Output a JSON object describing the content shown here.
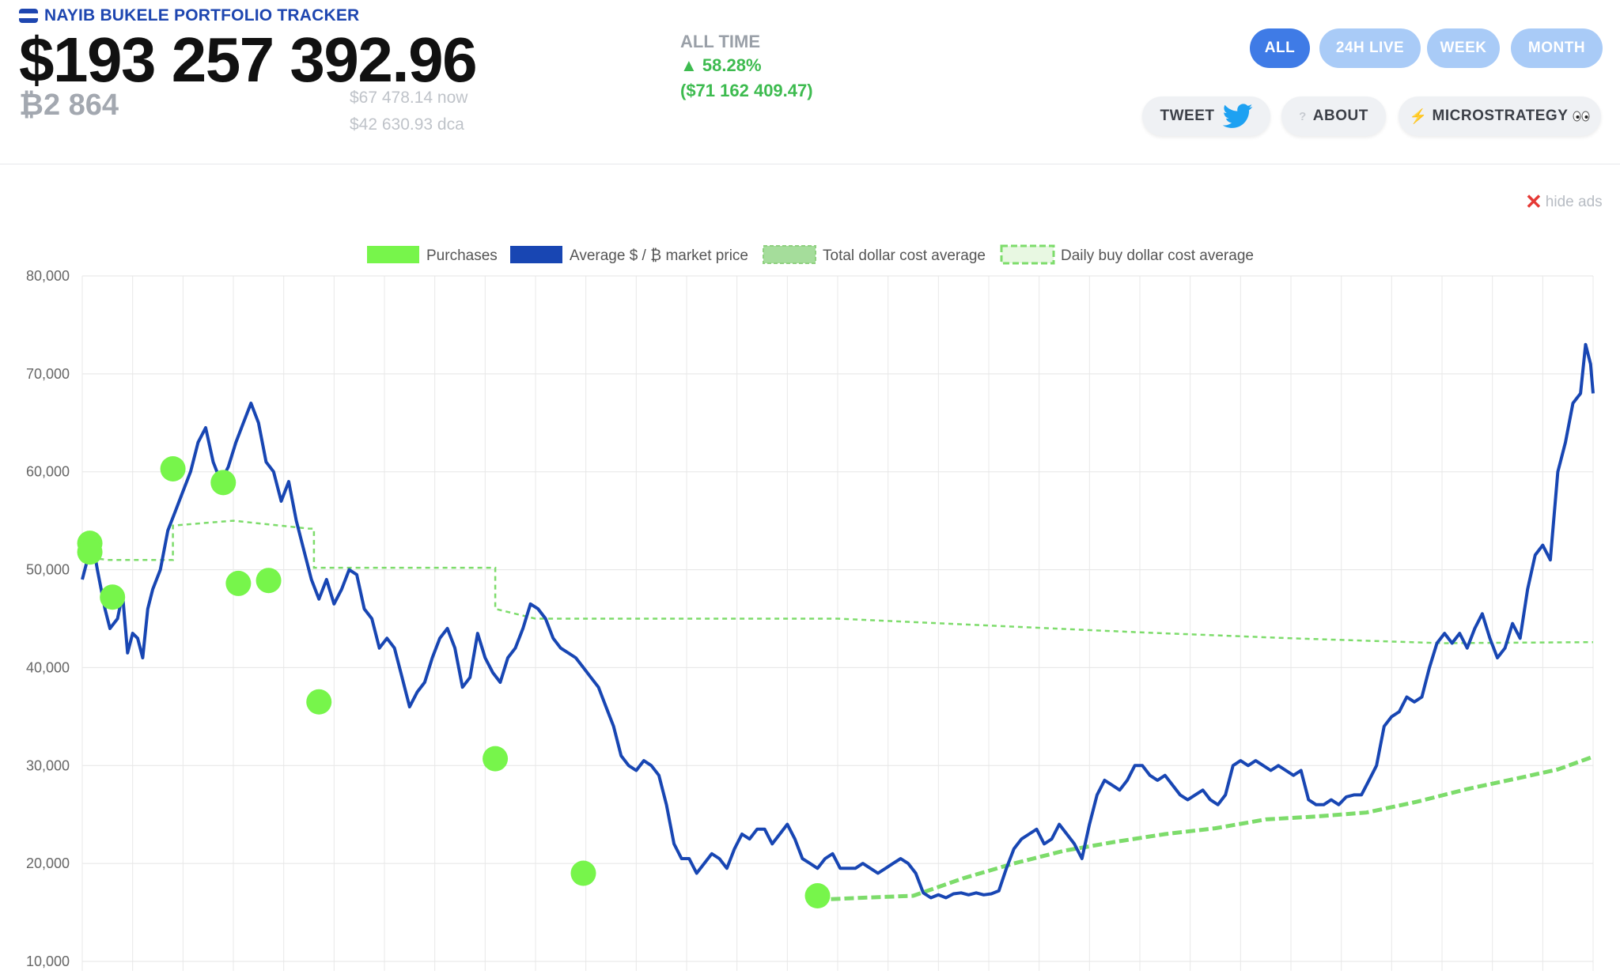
{
  "header": {
    "brand": "NAYIB BUKELE PORTFOLIO TRACKER",
    "flag_icon": "el-salvador-flag-icon",
    "total_value": "$193 257 392.96",
    "btc_holdings": "₿2 864",
    "price_now": "$67 478.14 now",
    "price_dca": "$42 630.93 dca",
    "all_time_label": "ALL TIME",
    "all_time_pct": "▲ 58.28%",
    "all_time_abs": "($71 162 409.47)"
  },
  "time_tabs": [
    {
      "label": "ALL",
      "active": true
    },
    {
      "label": "24H LIVE",
      "active": false
    },
    {
      "label": "WEEK",
      "active": false
    },
    {
      "label": "MONTH",
      "active": false
    }
  ],
  "actions": {
    "tweet": "TWEET",
    "tweet_icon": "twitter-bird-icon",
    "about": "ABOUT",
    "about_icon": "question-icon",
    "microstrategy": "MICROSTRATEGY",
    "microstrategy_icon": "lightning-icon",
    "eyes_icon": "eyes-icon"
  },
  "hide_ads": "hide ads",
  "colors": {
    "brand": "#1e46b0",
    "positive": "#3dbb4f",
    "active_tab": "#3f7be6",
    "inactive_tab": "#a9cbf7",
    "price_line": "#1846b3",
    "purchases": "#77f54b",
    "dca": "#7ddc6b"
  },
  "chart_data": {
    "type": "line",
    "legend": [
      "Purchases",
      "Average $ / ₿ market price",
      "Total dollar cost average",
      "Daily buy dollar cost average"
    ],
    "legend_position": "top",
    "ylim": [
      10000,
      80000
    ],
    "yticks": [
      "80,000",
      "70,000",
      "60,000",
      "50,000",
      "40,000",
      "30,000",
      "20,000",
      "10,000"
    ],
    "grid": true,
    "x_start": 0,
    "x_end": 30,
    "price_series": [
      [
        0,
        49000
      ],
      [
        0.1,
        51000
      ],
      [
        0.2,
        53000
      ],
      [
        0.3,
        50000
      ],
      [
        0.45,
        46000
      ],
      [
        0.55,
        44000
      ],
      [
        0.7,
        45000
      ],
      [
        0.8,
        47500
      ],
      [
        0.9,
        41500
      ],
      [
        1,
        43500
      ],
      [
        1.1,
        43000
      ],
      [
        1.2,
        41000
      ],
      [
        1.3,
        46000
      ],
      [
        1.4,
        48000
      ],
      [
        1.55,
        50000
      ],
      [
        1.7,
        54000
      ],
      [
        1.85,
        56000
      ],
      [
        2,
        58000
      ],
      [
        2.15,
        60000
      ],
      [
        2.3,
        63000
      ],
      [
        2.45,
        64500
      ],
      [
        2.6,
        61000
      ],
      [
        2.75,
        59000
      ],
      [
        2.9,
        60500
      ],
      [
        3.05,
        63000
      ],
      [
        3.2,
        65000
      ],
      [
        3.35,
        67000
      ],
      [
        3.5,
        65000
      ],
      [
        3.65,
        61000
      ],
      [
        3.8,
        60000
      ],
      [
        3.95,
        57000
      ],
      [
        4.1,
        59000
      ],
      [
        4.25,
        55000
      ],
      [
        4.4,
        52000
      ],
      [
        4.55,
        49000
      ],
      [
        4.7,
        47000
      ],
      [
        4.85,
        49000
      ],
      [
        5,
        46500
      ],
      [
        5.15,
        48000
      ],
      [
        5.3,
        50000
      ],
      [
        5.45,
        49500
      ],
      [
        5.6,
        46000
      ],
      [
        5.75,
        45000
      ],
      [
        5.9,
        42000
      ],
      [
        6.05,
        43000
      ],
      [
        6.2,
        42000
      ],
      [
        6.35,
        39000
      ],
      [
        6.5,
        36000
      ],
      [
        6.65,
        37500
      ],
      [
        6.8,
        38500
      ],
      [
        6.95,
        41000
      ],
      [
        7.1,
        43000
      ],
      [
        7.25,
        44000
      ],
      [
        7.4,
        42000
      ],
      [
        7.55,
        38000
      ],
      [
        7.7,
        39000
      ],
      [
        7.85,
        43500
      ],
      [
        8,
        41000
      ],
      [
        8.15,
        39500
      ],
      [
        8.3,
        38500
      ],
      [
        8.45,
        41000
      ],
      [
        8.6,
        42000
      ],
      [
        8.75,
        44000
      ],
      [
        8.9,
        46500
      ],
      [
        9.05,
        46000
      ],
      [
        9.2,
        45000
      ],
      [
        9.35,
        43000
      ],
      [
        9.5,
        42000
      ],
      [
        9.65,
        41500
      ],
      [
        9.8,
        41000
      ],
      [
        9.95,
        40000
      ],
      [
        10.1,
        39000
      ],
      [
        10.25,
        38000
      ],
      [
        10.4,
        36000
      ],
      [
        10.55,
        34000
      ],
      [
        10.7,
        31000
      ],
      [
        10.85,
        30000
      ],
      [
        11,
        29500
      ],
      [
        11.15,
        30500
      ],
      [
        11.3,
        30000
      ],
      [
        11.45,
        29000
      ],
      [
        11.6,
        26000
      ],
      [
        11.75,
        22000
      ],
      [
        11.9,
        20500
      ],
      [
        12.05,
        20500
      ],
      [
        12.2,
        19000
      ],
      [
        12.35,
        20000
      ],
      [
        12.5,
        21000
      ],
      [
        12.65,
        20500
      ],
      [
        12.8,
        19500
      ],
      [
        12.95,
        21500
      ],
      [
        13.1,
        23000
      ],
      [
        13.25,
        22500
      ],
      [
        13.4,
        23500
      ],
      [
        13.55,
        23500
      ],
      [
        13.7,
        22000
      ],
      [
        13.85,
        23000
      ],
      [
        14,
        24000
      ],
      [
        14.15,
        22500
      ],
      [
        14.3,
        20500
      ],
      [
        14.45,
        20000
      ],
      [
        14.6,
        19500
      ],
      [
        14.75,
        20500
      ],
      [
        14.9,
        21000
      ],
      [
        15.05,
        19500
      ],
      [
        15.2,
        19500
      ],
      [
        15.35,
        19500
      ],
      [
        15.5,
        20000
      ],
      [
        15.65,
        19500
      ],
      [
        15.8,
        19000
      ],
      [
        15.95,
        19500
      ],
      [
        16.1,
        20000
      ],
      [
        16.25,
        20500
      ],
      [
        16.4,
        20000
      ],
      [
        16.55,
        19000
      ],
      [
        16.7,
        17000
      ],
      [
        16.85,
        16500
      ],
      [
        17,
        16800
      ],
      [
        17.15,
        16500
      ],
      [
        17.3,
        16900
      ],
      [
        17.45,
        17000
      ],
      [
        17.6,
        16800
      ],
      [
        17.75,
        17000
      ],
      [
        17.9,
        16800
      ],
      [
        18.05,
        16900
      ],
      [
        18.2,
        17200
      ],
      [
        18.35,
        19500
      ],
      [
        18.5,
        21500
      ],
      [
        18.65,
        22500
      ],
      [
        18.8,
        23000
      ],
      [
        18.95,
        23500
      ],
      [
        19.1,
        22000
      ],
      [
        19.25,
        22500
      ],
      [
        19.4,
        24000
      ],
      [
        19.55,
        23000
      ],
      [
        19.7,
        22000
      ],
      [
        19.85,
        20500
      ],
      [
        20,
        24000
      ],
      [
        20.15,
        27000
      ],
      [
        20.3,
        28500
      ],
      [
        20.45,
        28000
      ],
      [
        20.6,
        27500
      ],
      [
        20.75,
        28500
      ],
      [
        20.9,
        30000
      ],
      [
        21.05,
        30000
      ],
      [
        21.2,
        29000
      ],
      [
        21.35,
        28500
      ],
      [
        21.5,
        29000
      ],
      [
        21.65,
        28000
      ],
      [
        21.8,
        27000
      ],
      [
        21.95,
        26500
      ],
      [
        22.1,
        27000
      ],
      [
        22.25,
        27500
      ],
      [
        22.4,
        26500
      ],
      [
        22.55,
        26000
      ],
      [
        22.7,
        27000
      ],
      [
        22.85,
        30000
      ],
      [
        23,
        30500
      ],
      [
        23.15,
        30000
      ],
      [
        23.3,
        30500
      ],
      [
        23.45,
        30000
      ],
      [
        23.6,
        29500
      ],
      [
        23.75,
        30000
      ],
      [
        23.9,
        29500
      ],
      [
        24.05,
        29000
      ],
      [
        24.2,
        29500
      ],
      [
        24.35,
        26500
      ],
      [
        24.5,
        26000
      ],
      [
        24.65,
        26000
      ],
      [
        24.8,
        26500
      ],
      [
        24.95,
        26000
      ],
      [
        25.1,
        26800
      ],
      [
        25.25,
        27000
      ],
      [
        25.4,
        27000
      ],
      [
        25.55,
        28500
      ],
      [
        25.7,
        30000
      ],
      [
        25.85,
        34000
      ],
      [
        26,
        35000
      ],
      [
        26.15,
        35500
      ],
      [
        26.3,
        37000
      ],
      [
        26.45,
        36500
      ],
      [
        26.6,
        37000
      ],
      [
        26.75,
        40000
      ],
      [
        26.9,
        42500
      ],
      [
        27.05,
        43500
      ],
      [
        27.2,
        42500
      ],
      [
        27.35,
        43500
      ],
      [
        27.5,
        42000
      ],
      [
        27.65,
        44000
      ],
      [
        27.8,
        45500
      ],
      [
        27.95,
        43000
      ],
      [
        28.1,
        41000
      ],
      [
        28.25,
        42000
      ],
      [
        28.4,
        44500
      ],
      [
        28.55,
        43000
      ],
      [
        28.7,
        48000
      ],
      [
        28.85,
        51500
      ],
      [
        29,
        52500
      ],
      [
        29.15,
        51000
      ],
      [
        29.3,
        60000
      ],
      [
        29.45,
        63000
      ],
      [
        29.6,
        67000
      ],
      [
        29.75,
        68000
      ],
      [
        29.85,
        73000
      ],
      [
        29.95,
        71000
      ],
      [
        30,
        68000
      ]
    ],
    "purchases": [
      [
        0.15,
        52700
      ],
      [
        0.15,
        51800
      ],
      [
        0.6,
        47200
      ],
      [
        1.8,
        60300
      ],
      [
        2.8,
        58900
      ],
      [
        3.1,
        48600
      ],
      [
        3.7,
        48900
      ],
      [
        4.7,
        36500
      ],
      [
        8.2,
        30700
      ],
      [
        9.95,
        19000
      ],
      [
        14.6,
        16700
      ]
    ],
    "total_dca_series": [
      [
        0,
        51500
      ],
      [
        0.2,
        51200
      ],
      [
        0.5,
        51000
      ],
      [
        1.8,
        51000
      ],
      [
        1.8,
        54500
      ],
      [
        2.5,
        54800
      ],
      [
        3,
        55000
      ],
      [
        4.5,
        54200
      ],
      [
        4.6,
        54200
      ],
      [
        4.6,
        50200
      ],
      [
        6,
        50200
      ],
      [
        8.2,
        50200
      ],
      [
        8.2,
        46000
      ],
      [
        9,
        45000
      ],
      [
        12,
        45000
      ],
      [
        15,
        45000
      ],
      [
        18,
        44300
      ],
      [
        21,
        43600
      ],
      [
        24,
        43000
      ],
      [
        27,
        42500
      ],
      [
        30,
        42600
      ]
    ],
    "daily_dca_series": [
      [
        14.6,
        16300
      ],
      [
        15.5,
        16500
      ],
      [
        16.5,
        16700
      ],
      [
        17.5,
        18500
      ],
      [
        18.5,
        20000
      ],
      [
        19.5,
        21300
      ],
      [
        20.5,
        22200
      ],
      [
        21.5,
        23000
      ],
      [
        22.5,
        23600
      ],
      [
        23.5,
        24500
      ],
      [
        24.5,
        24800
      ],
      [
        25.5,
        25200
      ],
      [
        26.5,
        26300
      ],
      [
        27.5,
        27600
      ],
      [
        28.5,
        28700
      ],
      [
        29.3,
        29600
      ],
      [
        30,
        30900
      ]
    ]
  }
}
